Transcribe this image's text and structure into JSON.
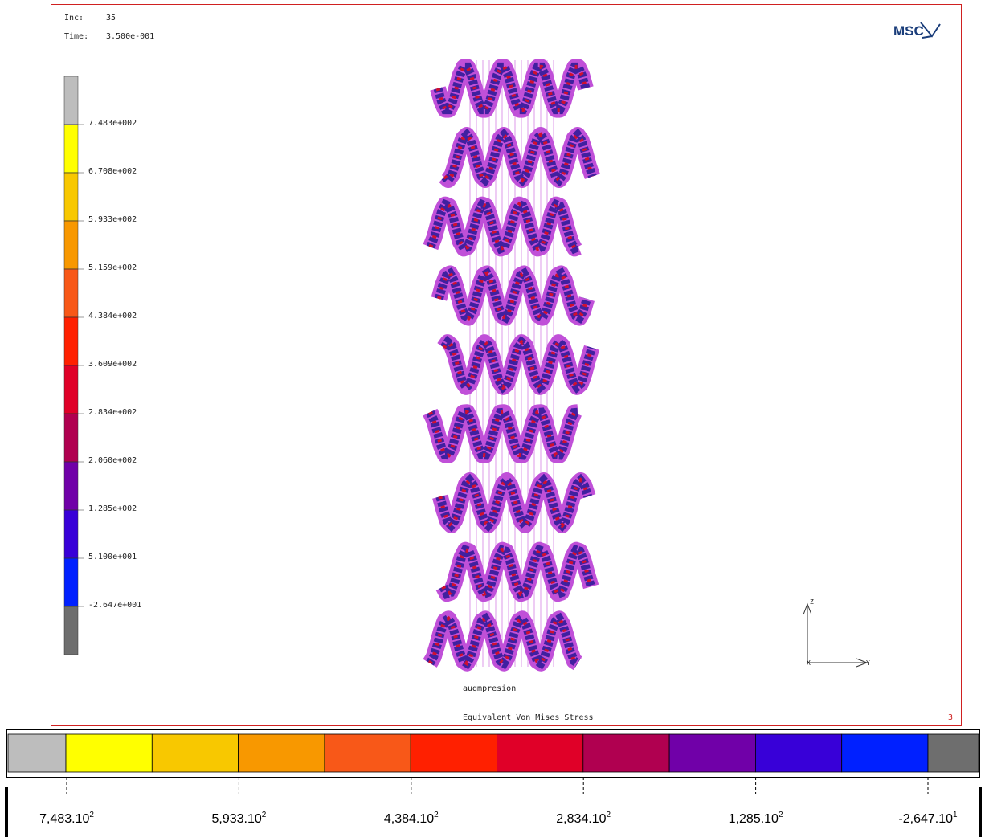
{
  "header": {
    "inc_label": "Inc:",
    "inc_value": "35",
    "time_label": "Time:",
    "time_value": "3.500e-001",
    "logo": "MSC"
  },
  "legend": {
    "colors": [
      "#bdbdbd",
      "#ffff00",
      "#f8c800",
      "#f89800",
      "#f85818",
      "#ff2000",
      "#e00028",
      "#b00050",
      "#7000a8",
      "#3800d8",
      "#0020ff",
      "#6e6e6e"
    ],
    "labels": [
      "7.483e+002",
      "6.708e+002",
      "5.933e+002",
      "5.159e+002",
      "4.384e+002",
      "3.609e+002",
      "2.834e+002",
      "2.060e+002",
      "1.285e+002",
      "5.100e+001",
      "-2.647e+001"
    ]
  },
  "viewport": {
    "job": "augmpresion",
    "quantity": "Equivalent Von Mises Stress",
    "index": "3",
    "axes": {
      "z": "Z",
      "x": "X",
      "y": "Y"
    }
  },
  "colorbar": {
    "labels": [
      {
        "mantissa": "7,483.10",
        "exponent": "2"
      },
      {
        "mantissa": "5,933.10",
        "exponent": "2"
      },
      {
        "mantissa": "4,384.10",
        "exponent": "2"
      },
      {
        "mantissa": "2,834.10",
        "exponent": "2"
      },
      {
        "mantissa": "1,285.10",
        "exponent": "2"
      },
      {
        "mantissa": "-2,647.10",
        "exponent": "1"
      }
    ]
  }
}
